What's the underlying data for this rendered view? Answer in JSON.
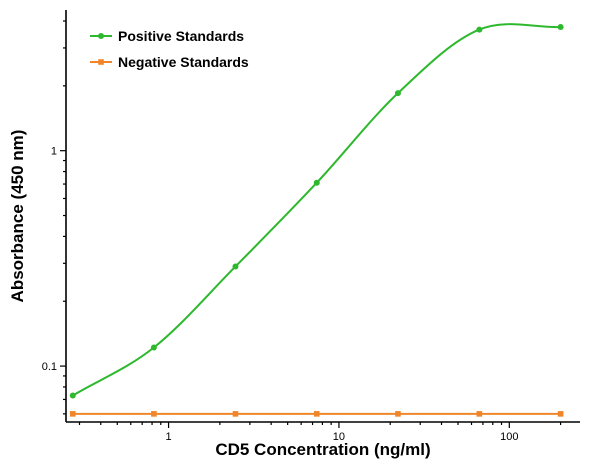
{
  "chart_data": {
    "type": "scatter",
    "xlabel": "CD5 Concentration (ng/ml)",
    "ylabel": "Absorbance (450 nm)",
    "x_scale": "log",
    "y_scale": "log",
    "xlim": [
      0.25,
      260
    ],
    "ylim": [
      0.055,
      4.5
    ],
    "x_ticks": [
      1,
      10,
      100
    ],
    "x_tick_labels": [
      "1",
      "10",
      "100"
    ],
    "y_ticks": [
      0.1,
      1
    ],
    "y_tick_labels": [
      "0.1",
      "1"
    ],
    "grid": false,
    "legend_position": "top-left",
    "series": [
      {
        "name": "Positive Standards",
        "color": "#2db82d",
        "marker": "circle",
        "fitted_curve": true,
        "x": [
          0.274,
          0.82,
          2.47,
          7.41,
          22.2,
          66.7,
          200
        ],
        "y": [
          0.073,
          0.122,
          0.29,
          0.71,
          1.85,
          3.65,
          3.75
        ]
      },
      {
        "name": "Negative Standards",
        "color": "#f0862a",
        "marker": "square",
        "fitted_curve": false,
        "x": [
          0.274,
          0.82,
          2.47,
          7.41,
          22.2,
          66.7,
          200
        ],
        "y": [
          0.06,
          0.06,
          0.06,
          0.06,
          0.06,
          0.06,
          0.06
        ]
      }
    ]
  }
}
